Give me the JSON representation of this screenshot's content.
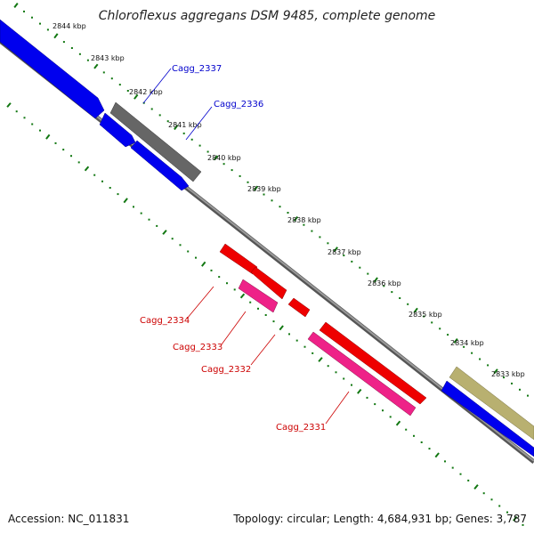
{
  "title": "Chloroflexus aggregans DSM 9485, complete genome",
  "accession": "Accession: NC_011831",
  "summary": "Topology: circular; Length: 4,684,931 bp; Genes: 3,787",
  "ruler_labels": [
    "2844 kbp",
    "2843 kbp",
    "2842 kbp",
    "2841 kbp",
    "2840 kbp",
    "2839 kbp",
    "2838 kbp",
    "2837 kbp",
    "2836 kbp",
    "2835 kbp",
    "2834 kbp",
    "2833 kbp"
  ],
  "gene_labels": {
    "cagg_2337": "Cagg_2337",
    "cagg_2336": "Cagg_2336",
    "cagg_2334": "Cagg_2334",
    "cagg_2333": "Cagg_2333",
    "cagg_2332": "Cagg_2332",
    "cagg_2331": "Cagg_2331"
  },
  "colors": {
    "forward_cds": "#0000ee",
    "reverse_cds": "#ee0000",
    "rna": "#ee2288",
    "pseudo": "#666666",
    "other": "#b8b070",
    "ruler": "#117711",
    "backbone": "#777777",
    "label_forward": "#0000cc",
    "label_reverse": "#cc0000"
  }
}
